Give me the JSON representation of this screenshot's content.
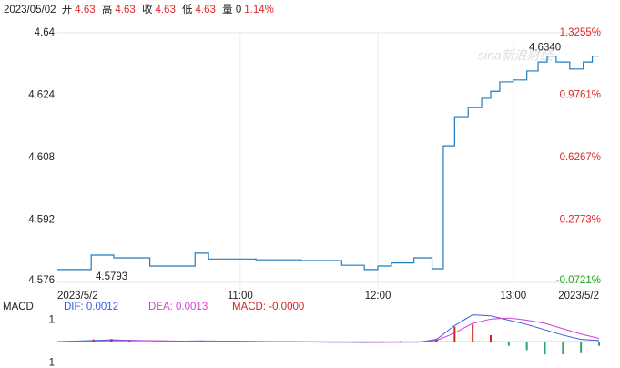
{
  "header": {
    "date": "2023/05/02",
    "items": [
      {
        "label": "开",
        "value": "4.63"
      },
      {
        "label": "高",
        "value": "4.63"
      },
      {
        "label": "收",
        "value": "4.63"
      },
      {
        "label": "低",
        "value": "4.63"
      }
    ],
    "volume": "量 0",
    "change": "1.14%"
  },
  "watermark": "sina新浪财经",
  "chart_data": [
    {
      "type": "line",
      "grid": "x",
      "xlim": [
        0,
        240
      ],
      "xticks": [
        {
          "value": 0,
          "label": "2023/5/2"
        },
        {
          "value": 81,
          "label": "11:00"
        },
        {
          "value": 142,
          "label": "12:00"
        },
        {
          "value": 202,
          "label": "13:00"
        },
        {
          "value": 240,
          "label": "2023/5/2"
        }
      ],
      "ylim": [
        4.576,
        4.64
      ],
      "yticks": [
        4.64,
        4.624,
        4.608,
        4.592,
        4.576
      ],
      "y2lim": [
        -0.0721,
        1.3255
      ],
      "y2ticks": [
        {
          "value": 1.3255,
          "label": "1.3255%"
        },
        {
          "value": 0.9761,
          "label": "0.9761%"
        },
        {
          "value": 0.6267,
          "label": "0.6267%"
        },
        {
          "value": 0.2773,
          "label": "0.2773%"
        },
        {
          "value": -0.0721,
          "label": "-0.0721%"
        }
      ],
      "up_color": "#e0262a",
      "down_color": "#21a121",
      "series": [
        {
          "color": "#1f7cc0",
          "step": true,
          "x": [
            0,
            15,
            25,
            41,
            61,
            67,
            88,
            108,
            126,
            136,
            142,
            148,
            158,
            166,
            171,
            176,
            182,
            188,
            192,
            196,
            202,
            208,
            213,
            217,
            221,
            227,
            233,
            237,
            240
          ],
          "values": [
            4.5793,
            4.583,
            4.5823,
            4.5802,
            4.5835,
            4.582,
            4.5818,
            4.5816,
            4.5804,
            4.5793,
            4.5802,
            4.581,
            4.5823,
            4.5795,
            4.611,
            4.6185,
            4.6208,
            4.6232,
            4.625,
            4.6274,
            4.6279,
            4.6302,
            4.6325,
            4.634,
            4.6325,
            4.6307,
            4.6325,
            4.634,
            4.634
          ]
        }
      ],
      "annotations": [
        {
          "value": 4.634,
          "label": "4.6340",
          "x": 217
        },
        {
          "value": 4.5793,
          "label": "4.5793",
          "x": 0
        }
      ]
    },
    {
      "type": "macd",
      "title": "MACD",
      "xlim": [
        0,
        240
      ],
      "ylim": [
        -1,
        1
      ],
      "yticks": [
        1,
        -1
      ],
      "up_color": "#d42020",
      "down_color": "#2aa37a",
      "x": [
        0,
        8,
        16,
        24,
        32,
        40,
        48,
        56,
        64,
        72,
        80,
        88,
        96,
        104,
        112,
        120,
        128,
        136,
        144,
        152,
        160,
        168,
        176,
        184,
        192,
        200,
        208,
        216,
        224,
        232,
        240
      ],
      "series": [
        {
          "name": "DIF: 0.0012",
          "kind": "line",
          "color": "#3b5bdb",
          "values": [
            0,
            0.02,
            0.05,
            0.08,
            0.06,
            0.04,
            0.02,
            0.02,
            0.03,
            0.02,
            0.01,
            0,
            0,
            -0.01,
            -0.02,
            -0.03,
            -0.03,
            -0.04,
            -0.03,
            -0.02,
            -0.03,
            0.1,
            0.75,
            1.25,
            1.2,
            1.0,
            0.8,
            0.55,
            0.3,
            0.1,
            0.05
          ]
        },
        {
          "name": "DEA: 0.0013",
          "kind": "line",
          "color": "#d23fd2",
          "values": [
            0,
            0.01,
            0.02,
            0.04,
            0.05,
            0.04,
            0.03,
            0.02,
            0.02,
            0.02,
            0.02,
            0.01,
            0,
            0,
            -0.01,
            -0.02,
            -0.02,
            -0.03,
            -0.03,
            -0.03,
            -0.02,
            0.05,
            0.4,
            0.85,
            1.05,
            1.1,
            1.0,
            0.85,
            0.6,
            0.35,
            0.15
          ]
        },
        {
          "name": "MACD: -0.0000",
          "kind": "bar",
          "color": "#d42020",
          "values": [
            0,
            0.04,
            0.1,
            0.12,
            0.04,
            0,
            -0.02,
            0,
            0.02,
            0,
            -0.01,
            -0.02,
            0,
            -0.02,
            -0.03,
            -0.02,
            -0.02,
            -0.03,
            0.01,
            0.02,
            -0.02,
            0.1,
            0.7,
            0.8,
            0.3,
            -0.2,
            -0.4,
            -0.6,
            -0.6,
            -0.5,
            -0.2
          ]
        }
      ]
    }
  ]
}
